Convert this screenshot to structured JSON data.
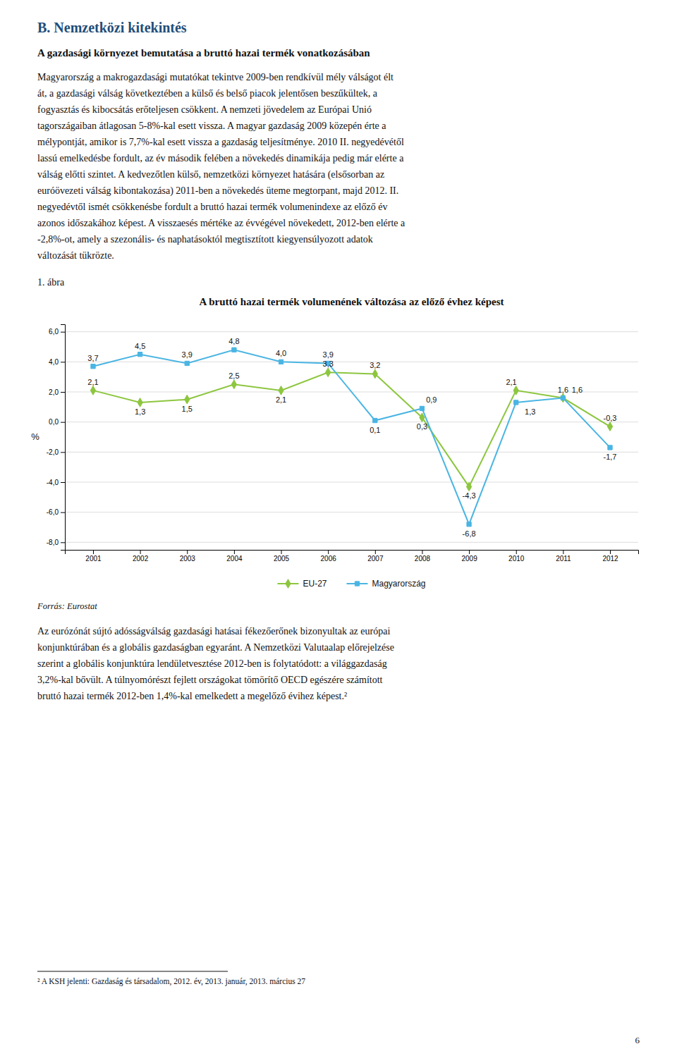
{
  "heading1": "B. Nemzetközi kitekintés",
  "heading2": "A gazdasági környezet bemutatása a bruttó hazai termék vonatkozásában",
  "body1": "Magyarország a makrogazdasági mutatókat tekintve 2009-ben rendkívül mély válságot élt\nát, a gazdasági válság következtében a külső és belső piacok jelentősen beszűkültek, a\nfogyasztás és kibocsátás erőteljesen csökkent. A nemzeti jövedelem az Európai Unió\ntagországaiban átlagosan 5-8%-kal esett vissza. A magyar gazdaság 2009 közepén érte a\nmélypontját, amikor is 7,7%-kal esett vissza a gazdaság teljesítménye.  2010 II. negyedévétől\nlassú emelkedésbe fordult, az év második felében a növekedés dinamikája pedig már elérte a\nválság előtti szintet.  A kedvezőtlen külső, nemzetközi környezet hatására (elsősorban az\neuróövezeti válság kibontakozása) 2011-ben a növekedés üteme megtorpant, majd 2012. II.\nnegyedévtől ismét csökkenésbe fordult a bruttó hazai termék volumenindexe az előző év\nazonos időszakához képest.  A visszaesés mértéke az évvégével növekedett, 2012-ben elérte a\n-2,8%-ot, amely a szezonális- és naphatásoktól megtisztított kiegyensúlyozott adatok\nváltozását tükrözte.",
  "figure_label": "1. ábra",
  "source": "Forrás: Eurostat",
  "body2": "Az eurózónát sújtó adósságválság gazdasági hatásai fékezőerőnek bizonyultak az európai\nkonjunktúrában és a globális gazdaságban egyaránt. A Nemzetközi Valutaalap előrejelzése\nszerint a globális konjunktúra lendületvesztése 2012-ben is folytatódott: a világgazdaság\n3,2%-kal bővült. A túlnyomórészt fejlett országokat tömörítő OECD egészére számított\nbruttó hazai termék 2012-ben 1,4%-kal emelkedett a megelőző évihez képest.²",
  "footnote": "² A KSH jelenti: Gazdaság és társadalom, 2012. év, 2013. január, 2013. március 27",
  "page_number": "6",
  "chart_data": {
    "type": "line",
    "title": "A bruttó hazai termék volumenének változása az előző évhez képest",
    "ylabel": "%",
    "x": [
      2001,
      2002,
      2003,
      2004,
      2005,
      2006,
      2007,
      2008,
      2009,
      2010,
      2011,
      2012
    ],
    "xlim": [
      2000.4,
      2012.6
    ],
    "xticks": [
      2001,
      2002,
      2003,
      2004,
      2005,
      2006,
      2007,
      2008,
      2009,
      2010,
      2011,
      2012
    ],
    "ylim": [
      -8.5,
      6.5
    ],
    "yticks": [
      {
        "value": 6.0,
        "label": "6,0"
      },
      {
        "value": 4.0,
        "label": "4,0"
      },
      {
        "value": 2.0,
        "label": "2,0"
      },
      {
        "value": 0.0,
        "label": "0,0"
      },
      {
        "value": -2.0,
        "label": "-2,0"
      },
      {
        "value": -4.0,
        "label": "-4,0"
      },
      {
        "value": -6.0,
        "label": "-6,0"
      },
      {
        "value": -8.0,
        "label": "-8,0"
      }
    ],
    "grid": true,
    "legend": "bottom",
    "data_labels": true,
    "series": [
      {
        "name": "EU-27",
        "color": "#8dc63f",
        "marker": "diamond",
        "values": [
          2.1,
          1.3,
          1.5,
          2.5,
          2.1,
          3.3,
          3.2,
          0.3,
          -4.3,
          2.1,
          1.6,
          -0.3
        ],
        "value_labels": [
          "2,1",
          "1,3",
          "1,5",
          "2,5",
          "2,1",
          "3,3",
          "3,2",
          "0,3",
          "-4,3",
          "2,1",
          "1,6",
          "-0,3"
        ]
      },
      {
        "name": "Magyarország",
        "color": "#4ab5e3",
        "marker": "square",
        "values": [
          3.7,
          4.5,
          3.9,
          4.8,
          4.0,
          3.9,
          0.1,
          0.9,
          -6.8,
          1.3,
          1.6,
          -1.7
        ],
        "value_labels": [
          "3,7",
          "4,5",
          "3,9",
          "4,8",
          "4,0",
          "3,9",
          "0,1",
          "0,9",
          "-6,8",
          "1,3",
          "1,6",
          "-1,7"
        ]
      }
    ]
  }
}
